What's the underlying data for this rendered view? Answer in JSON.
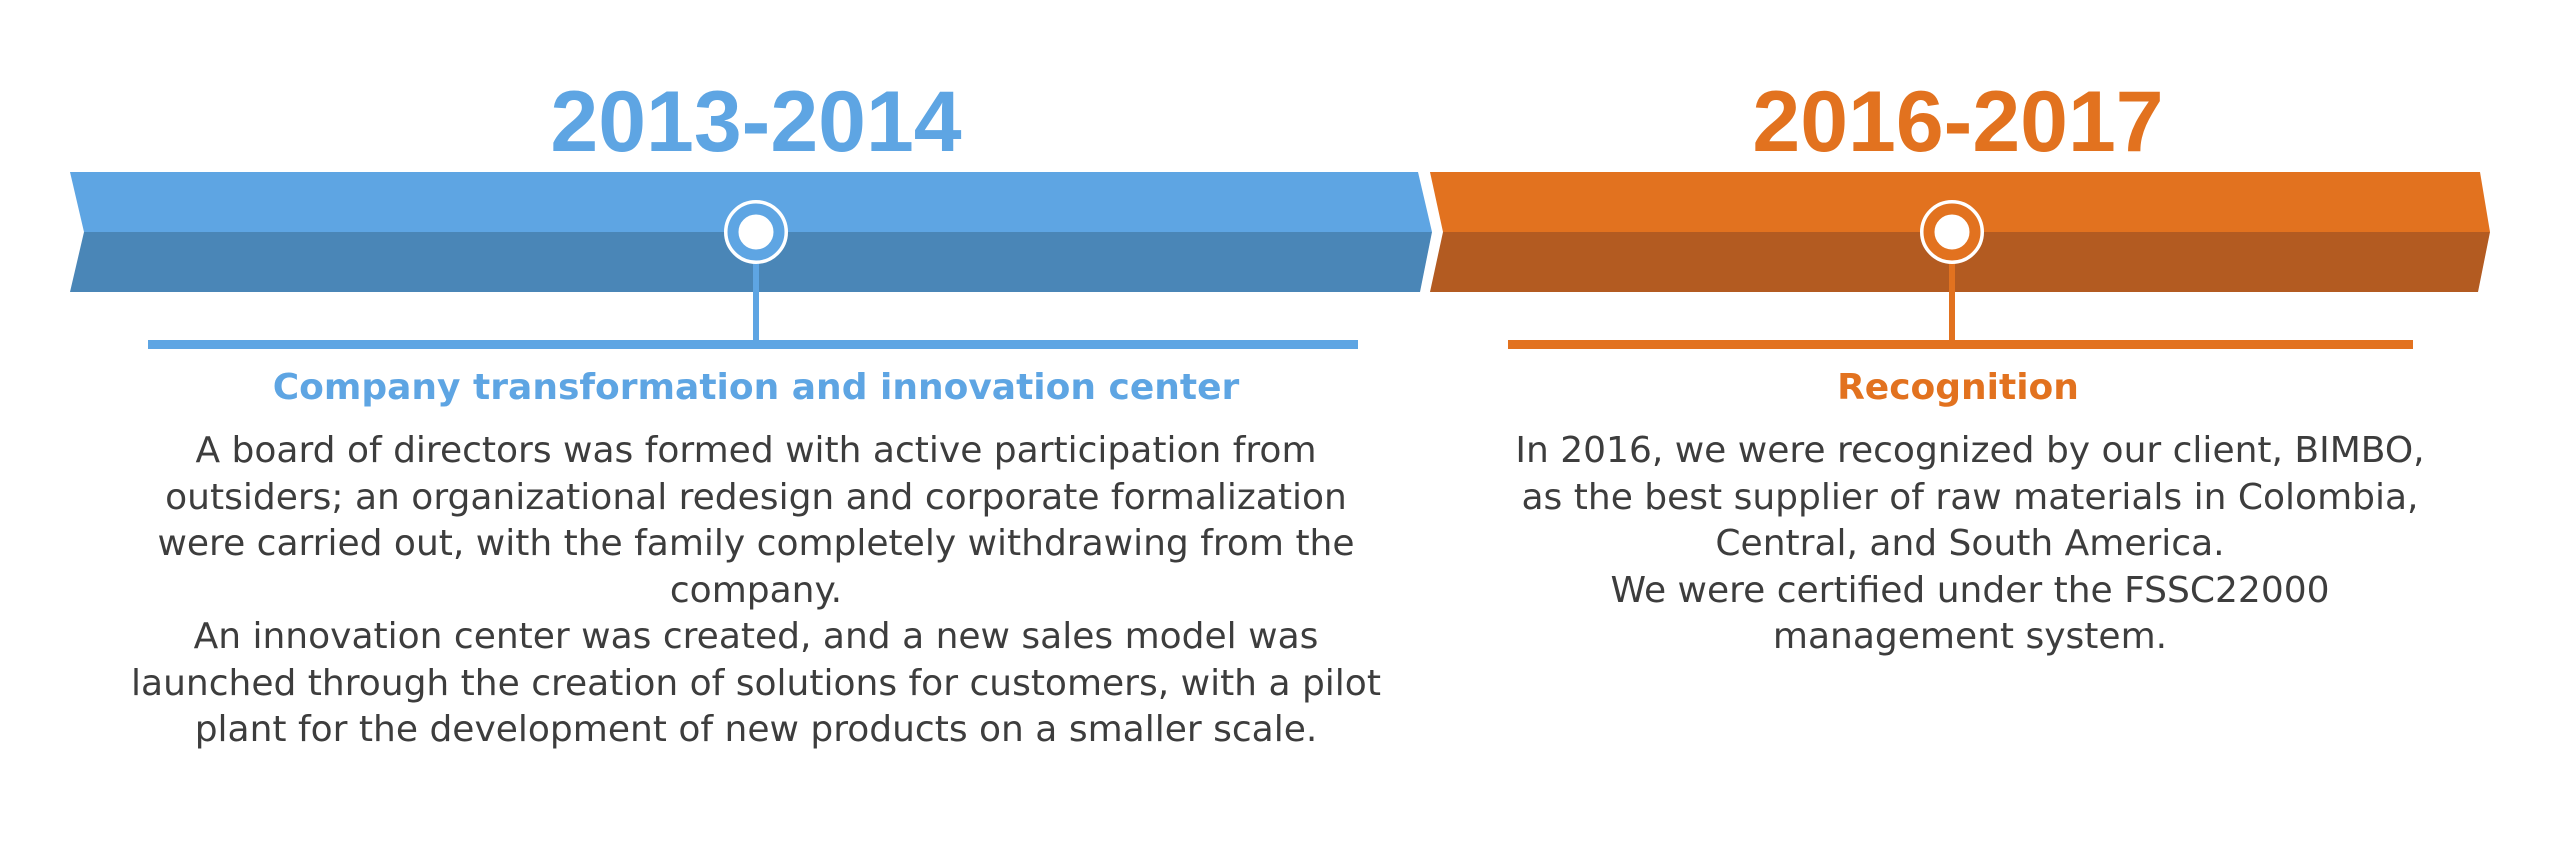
{
  "colors": {
    "blue_light": "#5ea5e3",
    "blue_dark": "#4a86b7",
    "orange_light": "#e2721f",
    "orange_dark": "#b35b21",
    "text": "#3d3d3d"
  },
  "periods": [
    {
      "year": "2013-2014",
      "heading": "Company transformation and innovation center",
      "paragraphs": [
        "A board of directors was formed with active participation from outsiders; an organizational redesign and corporate formalization were carried out, with the family completely withdrawing from the company.",
        "An innovation center was created, and a new sales model was launched through the creation of solutions for customers, with a pilot plant for the development of new products on a smaller scale."
      ]
    },
    {
      "year": "2016-2017",
      "heading": "Recognition",
      "paragraphs": [
        "In 2016, we were recognized by our client, BIMBO, as the best supplier of raw materials in Colombia, Central, and South America.",
        "We were certified under the FSSC22000 management system."
      ]
    }
  ]
}
